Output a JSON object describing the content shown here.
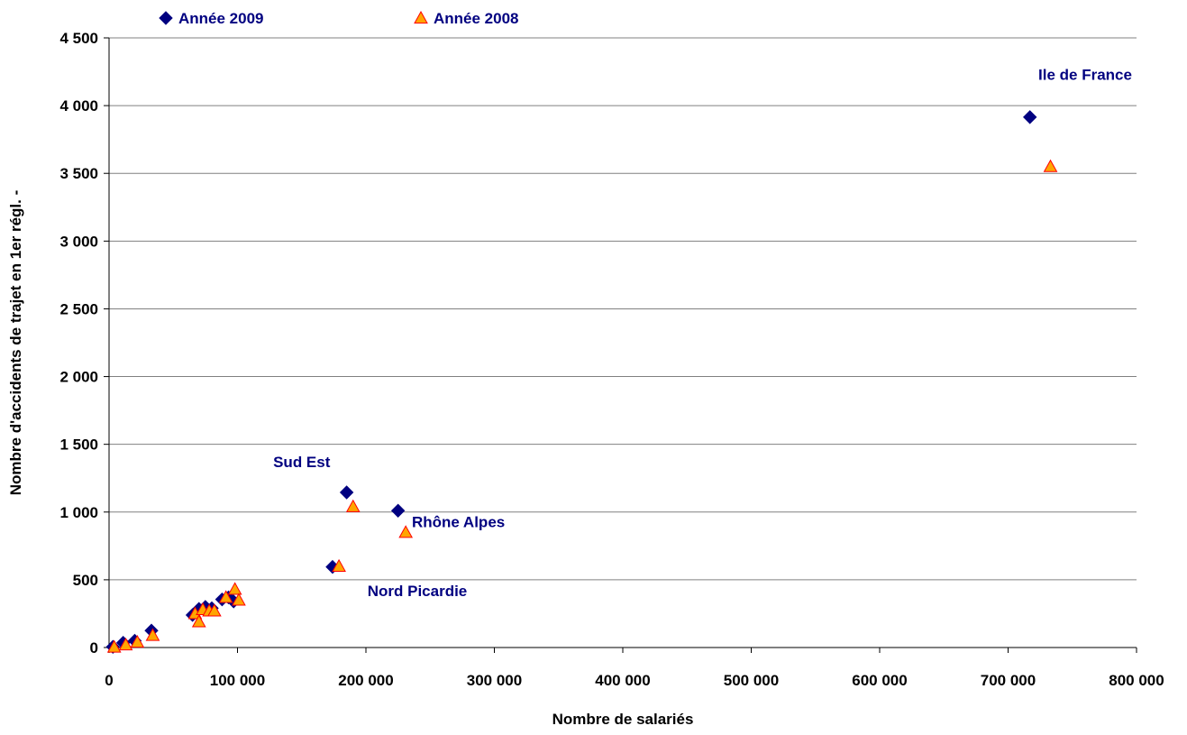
{
  "chart_data": {
    "type": "scatter",
    "title": "",
    "xlabel": "Nombre de salariés",
    "ylabel": "Nombre d'accidents de trajet en 1er régl. -",
    "xlim": [
      0,
      800000
    ],
    "ylim": [
      0,
      4500
    ],
    "x_ticks": [
      0,
      100000,
      200000,
      300000,
      400000,
      500000,
      600000,
      700000,
      800000
    ],
    "x_tick_labels": [
      "0",
      "100 000",
      "200 000",
      "300 000",
      "400 000",
      "500 000",
      "600 000",
      "700 000",
      "800 000"
    ],
    "y_ticks": [
      0,
      500,
      1000,
      1500,
      2000,
      2500,
      3000,
      3500,
      4000,
      4500
    ],
    "y_tick_labels": [
      "0",
      "500",
      "1 000",
      "1 500",
      "2 000",
      "2 500",
      "3 000",
      "3 500",
      "4 000",
      "4 500"
    ],
    "grid": "horizontal",
    "legend_position": "top",
    "series": [
      {
        "name": "Année 2009",
        "marker": "diamond",
        "color": "#000080",
        "points": [
          [
            3000,
            5
          ],
          [
            11000,
            35
          ],
          [
            20000,
            50
          ],
          [
            33000,
            125
          ],
          [
            65000,
            240
          ],
          [
            70000,
            285
          ],
          [
            75000,
            300
          ],
          [
            80000,
            290
          ],
          [
            88000,
            355
          ],
          [
            93000,
            370
          ],
          [
            97000,
            340
          ],
          [
            174000,
            595
          ],
          [
            185000,
            1145
          ],
          [
            225000,
            1010
          ],
          [
            717000,
            3915
          ]
        ]
      },
      {
        "name": "Année 2008",
        "marker": "triangle",
        "color": "#FFA500",
        "points": [
          [
            4000,
            3
          ],
          [
            13000,
            20
          ],
          [
            22000,
            40
          ],
          [
            34000,
            90
          ],
          [
            67000,
            250
          ],
          [
            70000,
            190
          ],
          [
            73000,
            280
          ],
          [
            78000,
            270
          ],
          [
            82000,
            270
          ],
          [
            91000,
            370
          ],
          [
            98000,
            430
          ],
          [
            101000,
            350
          ],
          [
            179000,
            600
          ],
          [
            190000,
            1040
          ],
          [
            231000,
            850
          ],
          [
            733000,
            3550
          ]
        ]
      }
    ],
    "annotations": [
      {
        "text": "Ile de France",
        "x": 760000,
        "y": 4190
      },
      {
        "text": "Sud Est",
        "x": 150000,
        "y": 1330
      },
      {
        "text": "Rhône Alpes",
        "x": 272000,
        "y": 890
      },
      {
        "text": "Nord Picardie",
        "x": 240000,
        "y": 380
      }
    ]
  }
}
